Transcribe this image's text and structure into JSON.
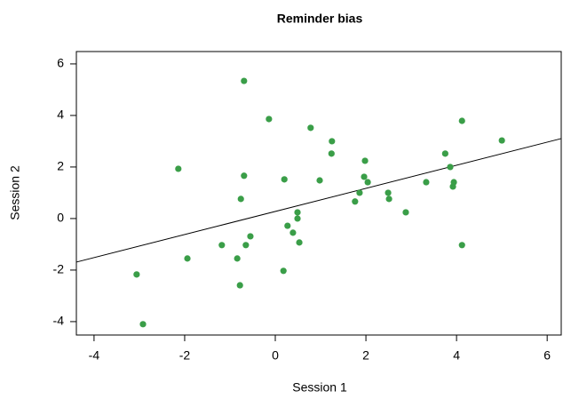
{
  "chart_data": {
    "type": "scatter",
    "title": "Reminder bias",
    "x_label": "Session 1",
    "y_label": "Session 2",
    "color": "#3a9e48",
    "x": [
      -0.69,
      -0.14,
      0.78,
      1.25,
      4.12,
      5.0,
      -2.14,
      -0.69,
      1.24,
      1.98,
      0.2,
      0.98,
      1.96,
      2.04,
      3.75,
      3.86,
      3.94,
      3.92,
      3.33,
      -0.76,
      1.86,
      1.76,
      2.49,
      2.51,
      2.88,
      0.49,
      0.49,
      0.27,
      0.39,
      0.53,
      -0.55,
      -0.65,
      -1.18,
      -1.94,
      -0.84,
      0.18,
      4.12,
      -3.06,
      -0.78,
      -2.92
    ],
    "y": [
      5.34,
      3.86,
      3.52,
      3.0,
      3.79,
      3.03,
      1.93,
      1.66,
      2.52,
      2.24,
      1.52,
      1.48,
      1.62,
      1.41,
      2.52,
      2.0,
      1.41,
      1.24,
      1.41,
      0.76,
      1.0,
      0.66,
      1.0,
      0.76,
      0.24,
      0.24,
      0.0,
      -0.28,
      -0.55,
      -0.93,
      -0.69,
      -1.03,
      -1.03,
      -1.55,
      -1.55,
      -2.03,
      -1.03,
      -2.17,
      -2.59,
      -4.1
    ],
    "fit": {
      "intercept": 0.276,
      "slope": 0.448
    },
    "xlim": [
      -4.39,
      6.31
    ],
    "ylim": [
      -4.52,
      6.48
    ],
    "xticks": [
      -4,
      -2,
      0,
      2,
      4,
      6
    ],
    "yticks": [
      -4,
      -2,
      0,
      2,
      4,
      6
    ]
  }
}
